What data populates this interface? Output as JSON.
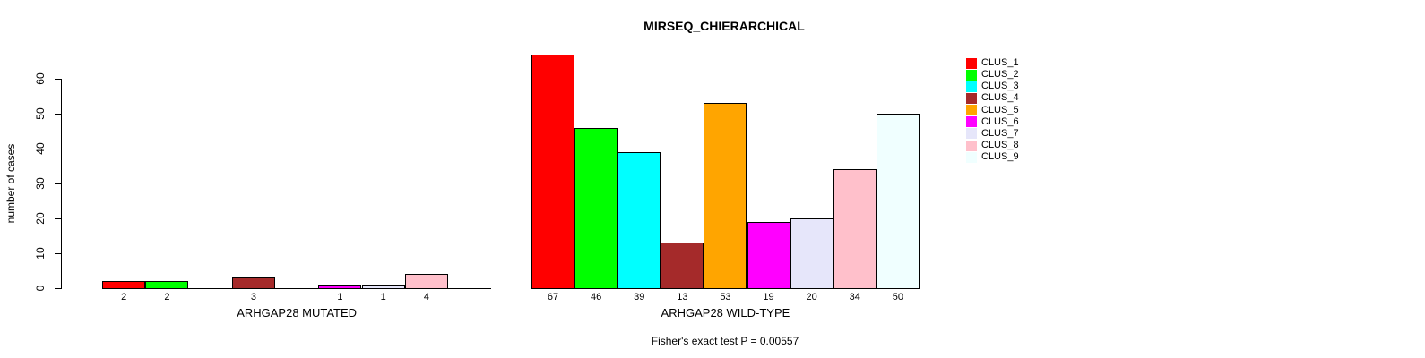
{
  "title": "MIRSEQ_CHIERARCHICAL",
  "ylabel": "number of cases",
  "footer": "Fisher's exact test P = 0.00557",
  "chart_data": {
    "type": "bar",
    "title": "MIRSEQ_CHIERARCHICAL",
    "ylabel": "number of cases",
    "ylim": [
      0,
      60
    ],
    "yticks": [
      0,
      10,
      20,
      30,
      40,
      50,
      60
    ],
    "grid": false,
    "legend_position": "right",
    "clusters": [
      "CLUS_1",
      "CLUS_2",
      "CLUS_3",
      "CLUS_4",
      "CLUS_5",
      "CLUS_6",
      "CLUS_7",
      "CLUS_8",
      "CLUS_9"
    ],
    "cluster_colors": [
      "#FF0000",
      "#00FF00",
      "#00FFFF",
      "#A52A2A",
      "#FFA500",
      "#FF00FF",
      "#E6E6FA",
      "#FFC0CB",
      "#F0FFFF"
    ],
    "groups": [
      {
        "label": "ARHGAP28 MUTATED",
        "values": [
          2,
          2,
          0,
          3,
          0,
          1,
          1,
          4,
          0
        ]
      },
      {
        "label": "ARHGAP28 WILD-TYPE",
        "values": [
          67,
          46,
          39,
          13,
          53,
          19,
          20,
          34,
          50
        ]
      }
    ],
    "bar_value_labels_shown_for_nonzero_only": true,
    "annotation": "Fisher's exact test P = 0.00557"
  },
  "legend": {
    "entries": [
      {
        "label": "CLUS_1",
        "color": "#FF0000"
      },
      {
        "label": "CLUS_2",
        "color": "#00FF00"
      },
      {
        "label": "CLUS_3",
        "color": "#00FFFF"
      },
      {
        "label": "CLUS_4",
        "color": "#A52A2A"
      },
      {
        "label": "CLUS_5",
        "color": "#FFA500"
      },
      {
        "label": "CLUS_6",
        "color": "#FF00FF"
      },
      {
        "label": "CLUS_7",
        "color": "#E6E6FA"
      },
      {
        "label": "CLUS_8",
        "color": "#FFC0CB"
      },
      {
        "label": "CLUS_9",
        "color": "#F0FFFF"
      }
    ]
  }
}
